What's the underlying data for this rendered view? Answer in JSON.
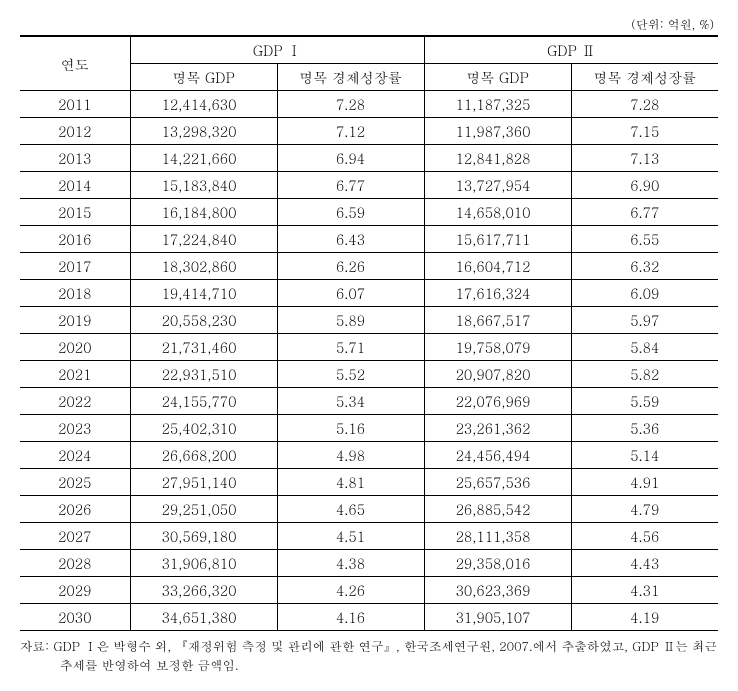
{
  "unit_text": "(단위: 억원, %)",
  "headers": {
    "year": "연도",
    "group1": "GDP Ⅰ",
    "group2": "GDP Ⅱ",
    "nominal_gdp": "명목 GDP",
    "growth_rate": "명목 경제성장률"
  },
  "columns_style": {
    "col_year_width": 110,
    "body_font_size": 14,
    "header_font_size": 14
  },
  "rows": [
    {
      "year": "2011",
      "g1_gdp": "12,414,630",
      "g1_rate": "7.28",
      "g2_gdp": "11,187,325",
      "g2_rate": "7.28"
    },
    {
      "year": "2012",
      "g1_gdp": "13,298,320",
      "g1_rate": "7.12",
      "g2_gdp": "11,987,360",
      "g2_rate": "7.15"
    },
    {
      "year": "2013",
      "g1_gdp": "14,221,660",
      "g1_rate": "6.94",
      "g2_gdp": "12,841,828",
      "g2_rate": "7.13"
    },
    {
      "year": "2014",
      "g1_gdp": "15,183,840",
      "g1_rate": "6.77",
      "g2_gdp": "13,727,954",
      "g2_rate": "6.90"
    },
    {
      "year": "2015",
      "g1_gdp": "16,184,800",
      "g1_rate": "6.59",
      "g2_gdp": "14,658,010",
      "g2_rate": "6.77"
    },
    {
      "year": "2016",
      "g1_gdp": "17,224,840",
      "g1_rate": "6.43",
      "g2_gdp": "15,617,711",
      "g2_rate": "6.55"
    },
    {
      "year": "2017",
      "g1_gdp": "18,302,860",
      "g1_rate": "6.26",
      "g2_gdp": "16,604,712",
      "g2_rate": "6.32"
    },
    {
      "year": "2018",
      "g1_gdp": "19,414,710",
      "g1_rate": "6.07",
      "g2_gdp": "17,616,324",
      "g2_rate": "6.09"
    },
    {
      "year": "2019",
      "g1_gdp": "20,558,230",
      "g1_rate": "5.89",
      "g2_gdp": "18,667,517",
      "g2_rate": "5.97"
    },
    {
      "year": "2020",
      "g1_gdp": "21,731,460",
      "g1_rate": "5.71",
      "g2_gdp": "19,758,079",
      "g2_rate": "5.84"
    },
    {
      "year": "2021",
      "g1_gdp": "22,931,510",
      "g1_rate": "5.52",
      "g2_gdp": "20,907,820",
      "g2_rate": "5.82"
    },
    {
      "year": "2022",
      "g1_gdp": "24,155,770",
      "g1_rate": "5.34",
      "g2_gdp": "22,076,969",
      "g2_rate": "5.59"
    },
    {
      "year": "2023",
      "g1_gdp": "25,402,310",
      "g1_rate": "5.16",
      "g2_gdp": "23,261,362",
      "g2_rate": "5.36"
    },
    {
      "year": "2024",
      "g1_gdp": "26,668,200",
      "g1_rate": "4.98",
      "g2_gdp": "24,456,494",
      "g2_rate": "5.14"
    },
    {
      "year": "2025",
      "g1_gdp": "27,951,140",
      "g1_rate": "4.81",
      "g2_gdp": "25,657,536",
      "g2_rate": "4.91"
    },
    {
      "year": "2026",
      "g1_gdp": "29,251,050",
      "g1_rate": "4.65",
      "g2_gdp": "26,885,542",
      "g2_rate": "4.79"
    },
    {
      "year": "2027",
      "g1_gdp": "30,569,180",
      "g1_rate": "4.51",
      "g2_gdp": "28,111,358",
      "g2_rate": "4.56"
    },
    {
      "year": "2028",
      "g1_gdp": "31,906,810",
      "g1_rate": "4.38",
      "g2_gdp": "29,358,016",
      "g2_rate": "4.43"
    },
    {
      "year": "2029",
      "g1_gdp": "33,266,320",
      "g1_rate": "4.26",
      "g2_gdp": "30,623,369",
      "g2_rate": "4.31"
    },
    {
      "year": "2030",
      "g1_gdp": "34,651,380",
      "g1_rate": "4.16",
      "g2_gdp": "31,905,107",
      "g2_rate": "4.19"
    }
  ],
  "footnote": "자료: GDP Ⅰ은 박형수 외, 『재정위험 측정 및 관리에 관한 연구』, 한국조세연구원, 2007.에서 추출하였고, GDP Ⅱ는 최근 추세를 반영하여 보정한 금액임."
}
